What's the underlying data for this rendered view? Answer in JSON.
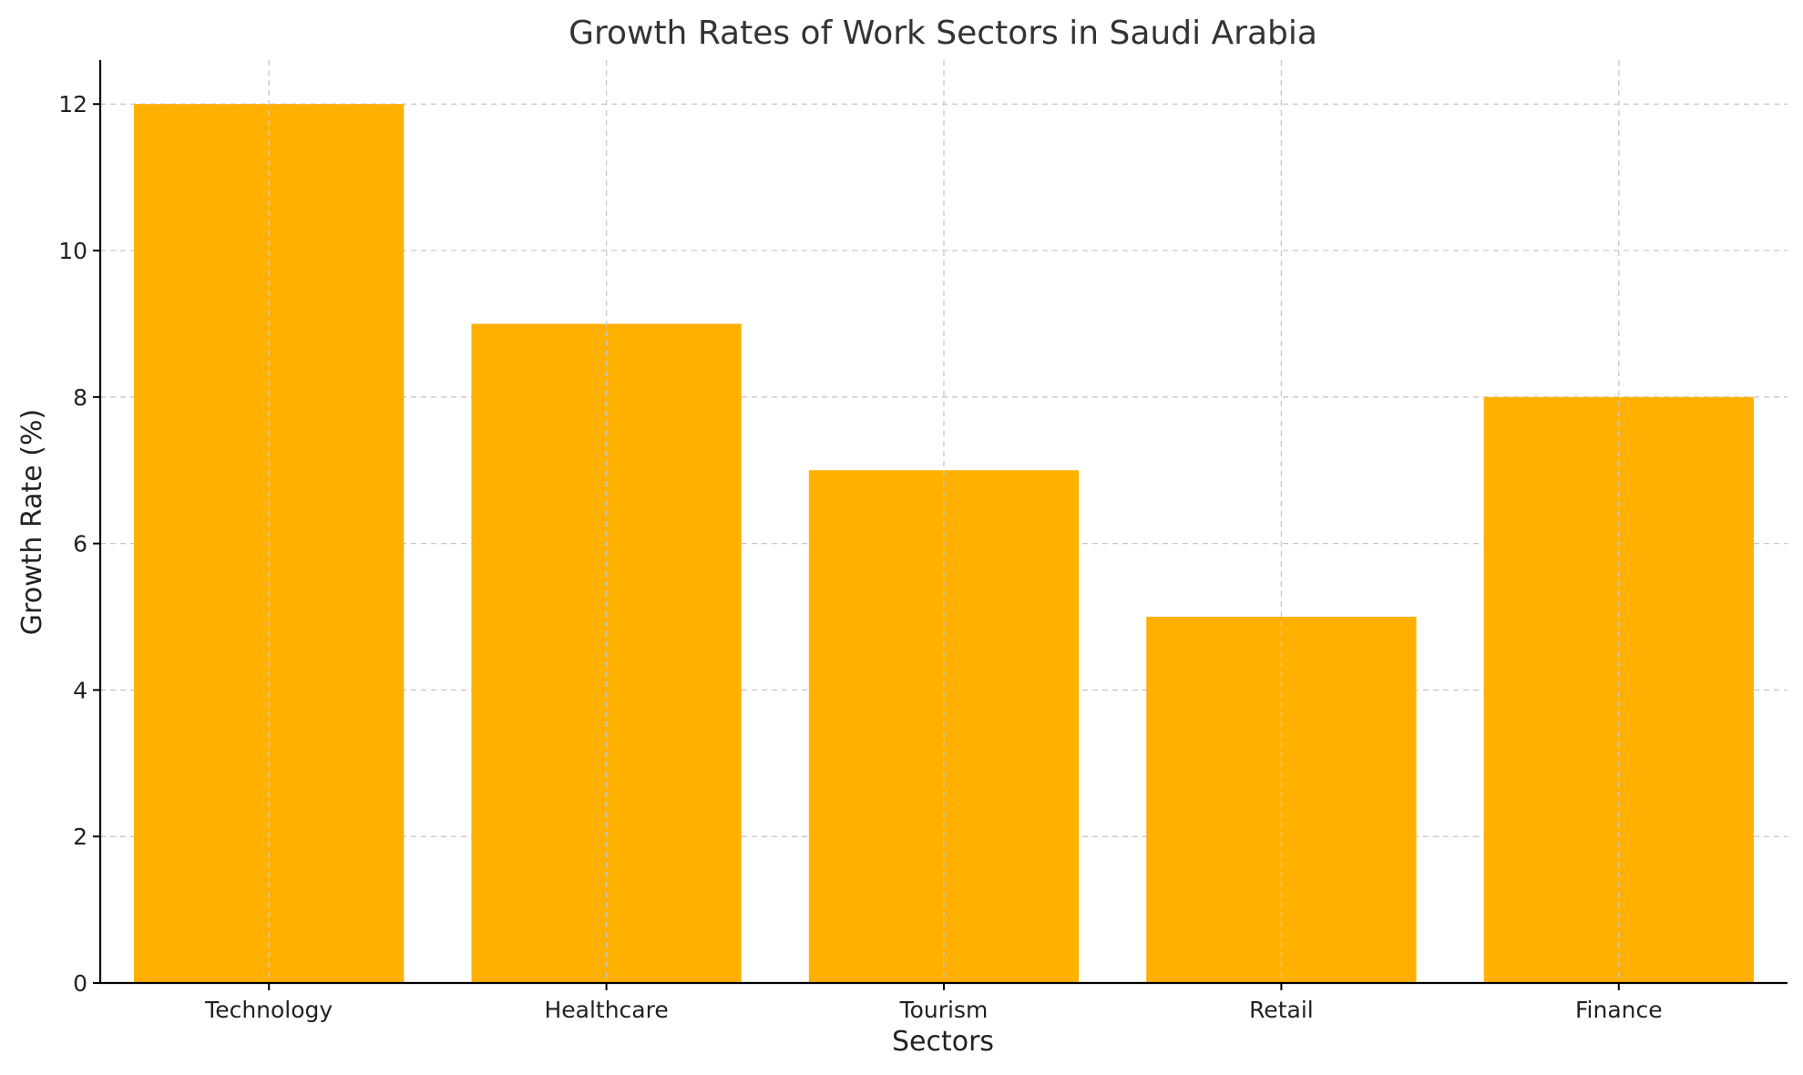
{
  "chart_data": {
    "type": "bar",
    "title": "Growth Rates of Work Sectors in Saudi Arabia",
    "xlabel": "Sectors",
    "ylabel": "Growth Rate (%)",
    "categories": [
      "Technology",
      "Healthcare",
      "Tourism",
      "Retail",
      "Finance"
    ],
    "values": [
      12,
      9,
      7,
      5,
      8
    ],
    "ylim": [
      0,
      12.6
    ],
    "yticks": [
      0,
      2,
      4,
      6,
      8,
      10,
      12
    ],
    "grid": true,
    "bar_color": "#FFB000"
  }
}
